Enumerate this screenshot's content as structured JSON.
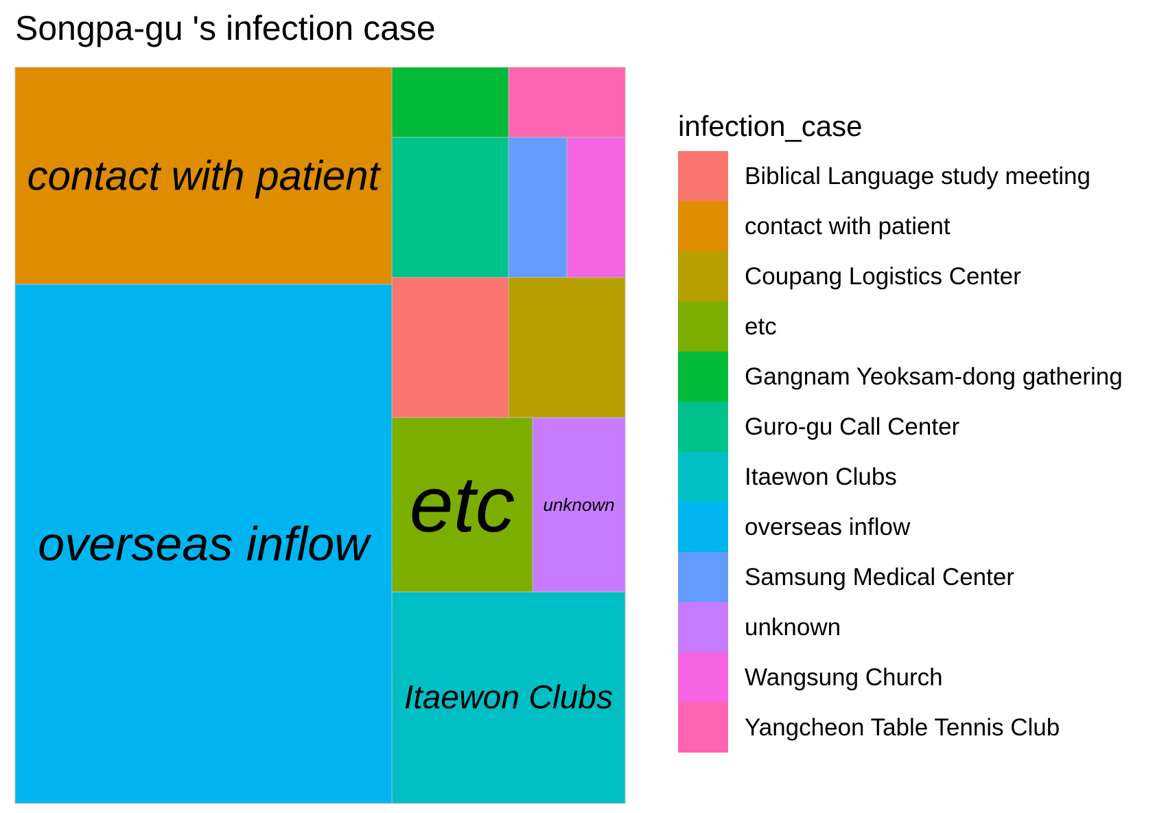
{
  "chart_data": {
    "type": "treemap",
    "title": "Songpa-gu 's infection case",
    "legend_title": "infection_case",
    "legend_position": "right",
    "categories": [
      {
        "name": "Biblical Language study meeting",
        "value": 4,
        "color": "#F8766D",
        "label_shown": false
      },
      {
        "name": "contact with patient",
        "value": 16,
        "color": "#DE8C00",
        "label_shown": true
      },
      {
        "name": "Coupang Logistics Center",
        "value": 4,
        "color": "#B79F00",
        "label_shown": false
      },
      {
        "name": "etc",
        "value": 6,
        "color": "#7CAE00",
        "label_shown": true
      },
      {
        "name": "Gangnam Yeoksam-dong gathering",
        "value": 2,
        "color": "#00BA38",
        "label_shown": false
      },
      {
        "name": "Guro-gu Call Center",
        "value": 4,
        "color": "#00C08B",
        "label_shown": false
      },
      {
        "name": "Itaewon Clubs",
        "value": 12,
        "color": "#00BFC4",
        "label_shown": true
      },
      {
        "name": "overseas inflow",
        "value": 50,
        "color": "#00B4F0",
        "label_shown": true
      },
      {
        "name": "Samsung Medical Center",
        "value": 2,
        "color": "#619CFF",
        "label_shown": false
      },
      {
        "name": "unknown",
        "value": 4,
        "color": "#C77CFF",
        "label_shown": true
      },
      {
        "name": "Wangsung Church",
        "value": 2,
        "color": "#F564E3",
        "label_shown": false
      },
      {
        "name": "Yangcheon Table Tennis Club",
        "value": 2,
        "color": "#FF64B0",
        "label_shown": false
      }
    ]
  }
}
